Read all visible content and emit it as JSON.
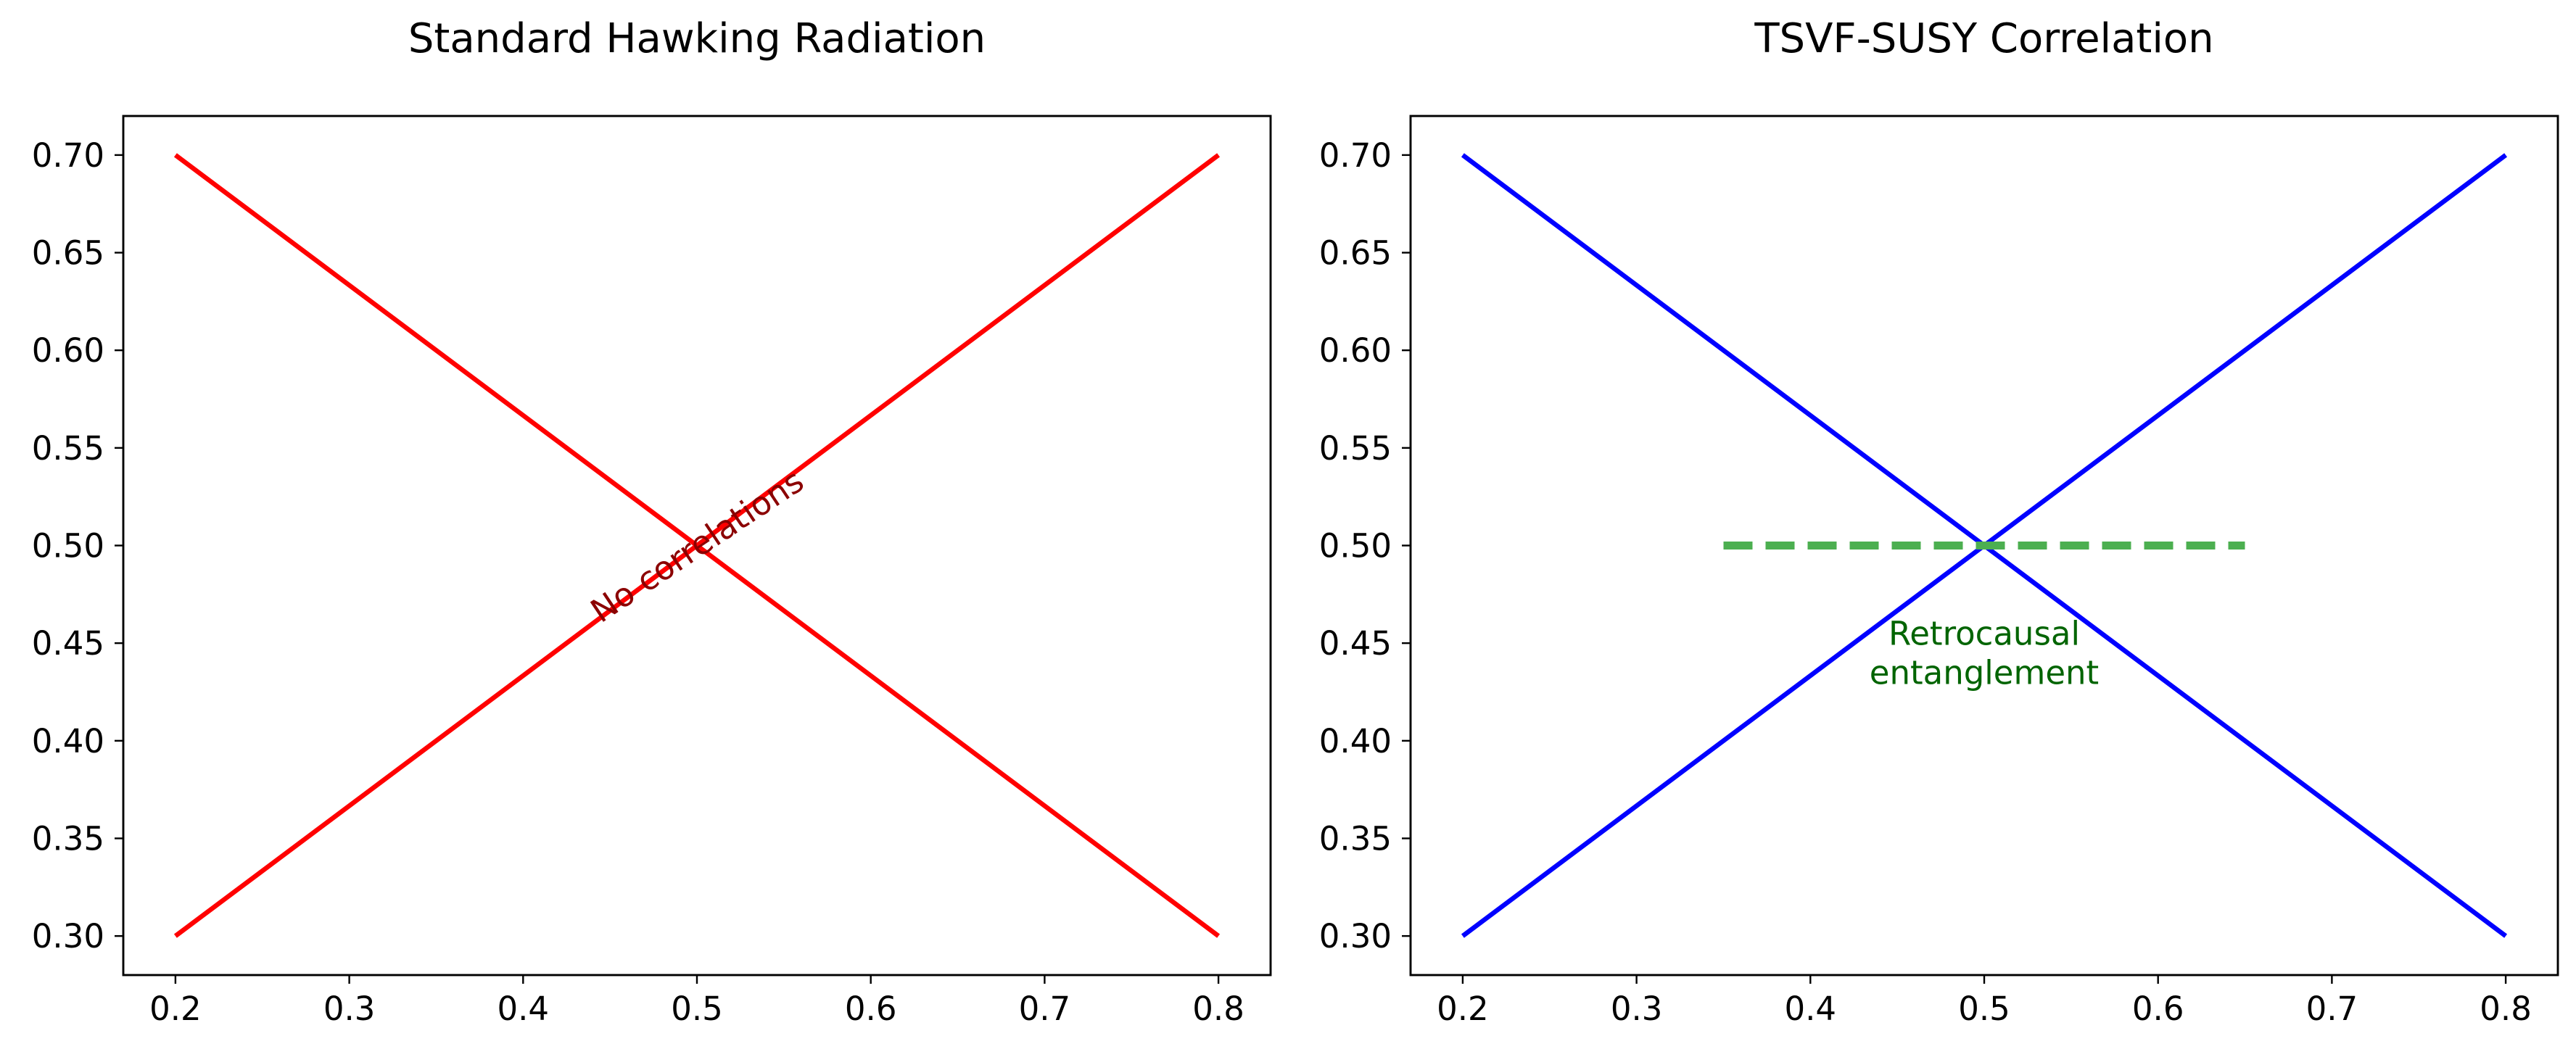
{
  "chart_data": [
    {
      "type": "line",
      "title": "Standard Hawking Radiation",
      "xlabel": "",
      "ylabel": "",
      "xlim": [
        0.17,
        0.83
      ],
      "ylim": [
        0.28,
        0.72
      ],
      "x_ticks": [
        "0.2",
        "0.3",
        "0.4",
        "0.5",
        "0.6",
        "0.7",
        "0.8"
      ],
      "y_ticks": [
        "0.30",
        "0.35",
        "0.40",
        "0.45",
        "0.50",
        "0.55",
        "0.60",
        "0.65",
        "0.70"
      ],
      "grid": false,
      "series": [
        {
          "x": [
            0.2,
            0.8
          ],
          "y": [
            0.3,
            0.7
          ],
          "color": "#ff0000",
          "style": "solid"
        },
        {
          "x": [
            0.2,
            0.8
          ],
          "y": [
            0.7,
            0.3
          ],
          "color": "#ff0000",
          "style": "solid"
        }
      ],
      "annotations": [
        {
          "text": "No correlations",
          "x": 0.5,
          "y": 0.5,
          "rotation": 33.7,
          "color": "#8b0000"
        }
      ]
    },
    {
      "type": "line",
      "title": "TSVF-SUSY Correlation",
      "xlabel": "",
      "ylabel": "",
      "xlim": [
        0.17,
        0.83
      ],
      "ylim": [
        0.28,
        0.72
      ],
      "x_ticks": [
        "0.2",
        "0.3",
        "0.4",
        "0.5",
        "0.6",
        "0.7",
        "0.8"
      ],
      "y_ticks": [
        "0.30",
        "0.35",
        "0.40",
        "0.45",
        "0.50",
        "0.55",
        "0.60",
        "0.65",
        "0.70"
      ],
      "grid": false,
      "series": [
        {
          "x": [
            0.2,
            0.8
          ],
          "y": [
            0.3,
            0.7
          ],
          "color": "#0000ff",
          "style": "solid"
        },
        {
          "x": [
            0.2,
            0.8
          ],
          "y": [
            0.7,
            0.3
          ],
          "color": "#0000ff",
          "style": "solid"
        },
        {
          "x": [
            0.35,
            0.65
          ],
          "y": [
            0.5,
            0.5
          ],
          "color": "#4caf50",
          "style": "dashed"
        }
      ],
      "annotations": [
        {
          "text": "Retrocausal\nentanglement",
          "x": 0.5,
          "y": 0.445,
          "rotation": 0,
          "color": "#006400"
        }
      ]
    }
  ]
}
